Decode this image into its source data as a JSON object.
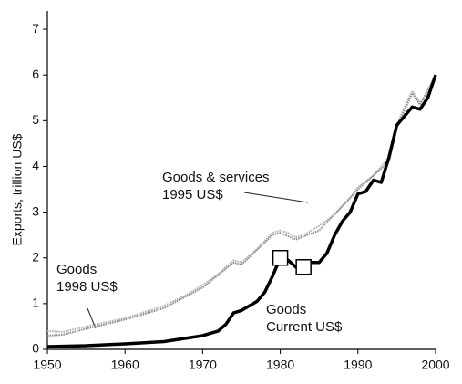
{
  "chart_data": {
    "type": "line",
    "y_label": "Exports, trillion US$",
    "xlim": [
      1950,
      2000
    ],
    "xticks": [
      1950,
      1960,
      1970,
      1980,
      1990,
      2000
    ],
    "ylim": [
      0,
      7.4
    ],
    "yticks": [
      0,
      1,
      2,
      3,
      4,
      5,
      6,
      7
    ],
    "series": [
      {
        "name": "Goods & services\n1995 US$",
        "color": "#b0b0b0",
        "x": [
          1950,
          1952,
          1955,
          1960,
          1965,
          1968,
          1970,
          1972,
          1974,
          1975,
          1977,
          1979,
          1980,
          1981,
          1982,
          1983,
          1985,
          1987,
          1989,
          1990,
          1992,
          1994,
          1995,
          1996,
          1997,
          1998,
          1999,
          2000
        ],
        "values": [
          0.4,
          0.38,
          0.5,
          0.68,
          0.95,
          1.2,
          1.4,
          1.65,
          1.95,
          1.9,
          2.2,
          2.55,
          2.6,
          2.55,
          2.45,
          2.5,
          2.7,
          2.95,
          3.3,
          3.55,
          3.8,
          4.2,
          4.9,
          5.3,
          5.65,
          5.4,
          5.6,
          6.0
        ]
      },
      {
        "name": "Goods\n1998 US$",
        "color": "#8a8a8a",
        "x": [
          1950,
          1952,
          1955,
          1960,
          1965,
          1970,
          1974,
          1975,
          1979,
          1980,
          1982,
          1985,
          1990,
          1994,
          1995,
          1997,
          1998,
          2000
        ],
        "values": [
          0.3,
          0.32,
          0.45,
          0.65,
          0.9,
          1.35,
          1.9,
          1.85,
          2.5,
          2.55,
          2.4,
          2.6,
          3.5,
          4.1,
          4.85,
          5.6,
          5.35,
          6.0
        ]
      },
      {
        "name": "Goods\nCurrent US$",
        "color": "#000000",
        "marker_x": [
          1980,
          1983
        ],
        "x": [
          1950,
          1955,
          1960,
          1965,
          1970,
          1972,
          1973,
          1974,
          1975,
          1976,
          1977,
          1978,
          1979,
          1980,
          1981,
          1982,
          1983,
          1984,
          1985,
          1986,
          1987,
          1988,
          1989,
          1990,
          1991,
          1992,
          1993,
          1994,
          1995,
          1996,
          1997,
          1998,
          1999,
          2000
        ],
        "values": [
          0.06,
          0.08,
          0.12,
          0.17,
          0.3,
          0.4,
          0.55,
          0.8,
          0.85,
          0.95,
          1.05,
          1.25,
          1.6,
          2.0,
          1.95,
          1.8,
          1.8,
          1.9,
          1.9,
          2.1,
          2.5,
          2.8,
          3.0,
          3.4,
          3.45,
          3.7,
          3.65,
          4.2,
          4.9,
          5.1,
          5.3,
          5.25,
          5.5,
          6.0
        ]
      }
    ]
  }
}
